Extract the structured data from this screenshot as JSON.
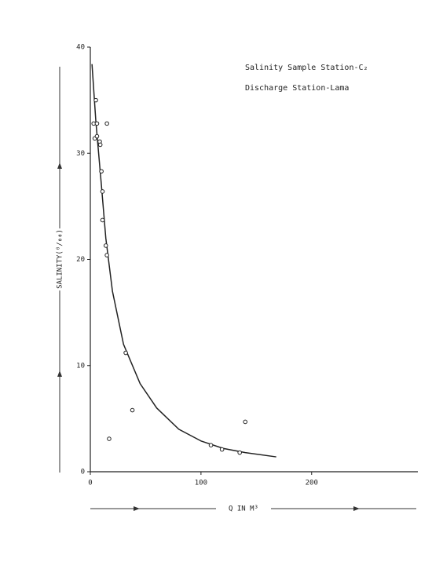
{
  "chart_data": {
    "type": "scatter",
    "annotations": [
      "Salinity Sample Station-C₂",
      "Discharge Station-Lama"
    ],
    "xlabel": "Q IN M³",
    "ylabel": "SALINITY(⁰/₀₀)",
    "xlim": [
      0,
      296
    ],
    "ylim": [
      0,
      40
    ],
    "xticks": [
      0,
      100,
      200
    ],
    "yticks": [
      0,
      10,
      20,
      30,
      40
    ],
    "color": "#222",
    "points": {
      "x": [
        5,
        3,
        6,
        15,
        4,
        6,
        8.5,
        9,
        10,
        11,
        11,
        14,
        15,
        32,
        38,
        17,
        109,
        119,
        135,
        140
      ],
      "values": [
        35,
        32.8,
        32.8,
        32.8,
        31.4,
        31.6,
        31.1,
        30.8,
        28.3,
        26.4,
        23.7,
        21.3,
        20.4,
        11.2,
        5.8,
        3.1,
        2.5,
        2.1,
        1.8,
        4.7
      ]
    },
    "curve": {
      "x": [
        1.5,
        5,
        10,
        14,
        20,
        30,
        45,
        60,
        80,
        100,
        120,
        140,
        168
      ],
      "values": [
        38.4,
        33,
        27,
        22,
        17,
        12,
        8.3,
        6,
        4,
        2.9,
        2.2,
        1.8,
        1.4
      ]
    }
  }
}
